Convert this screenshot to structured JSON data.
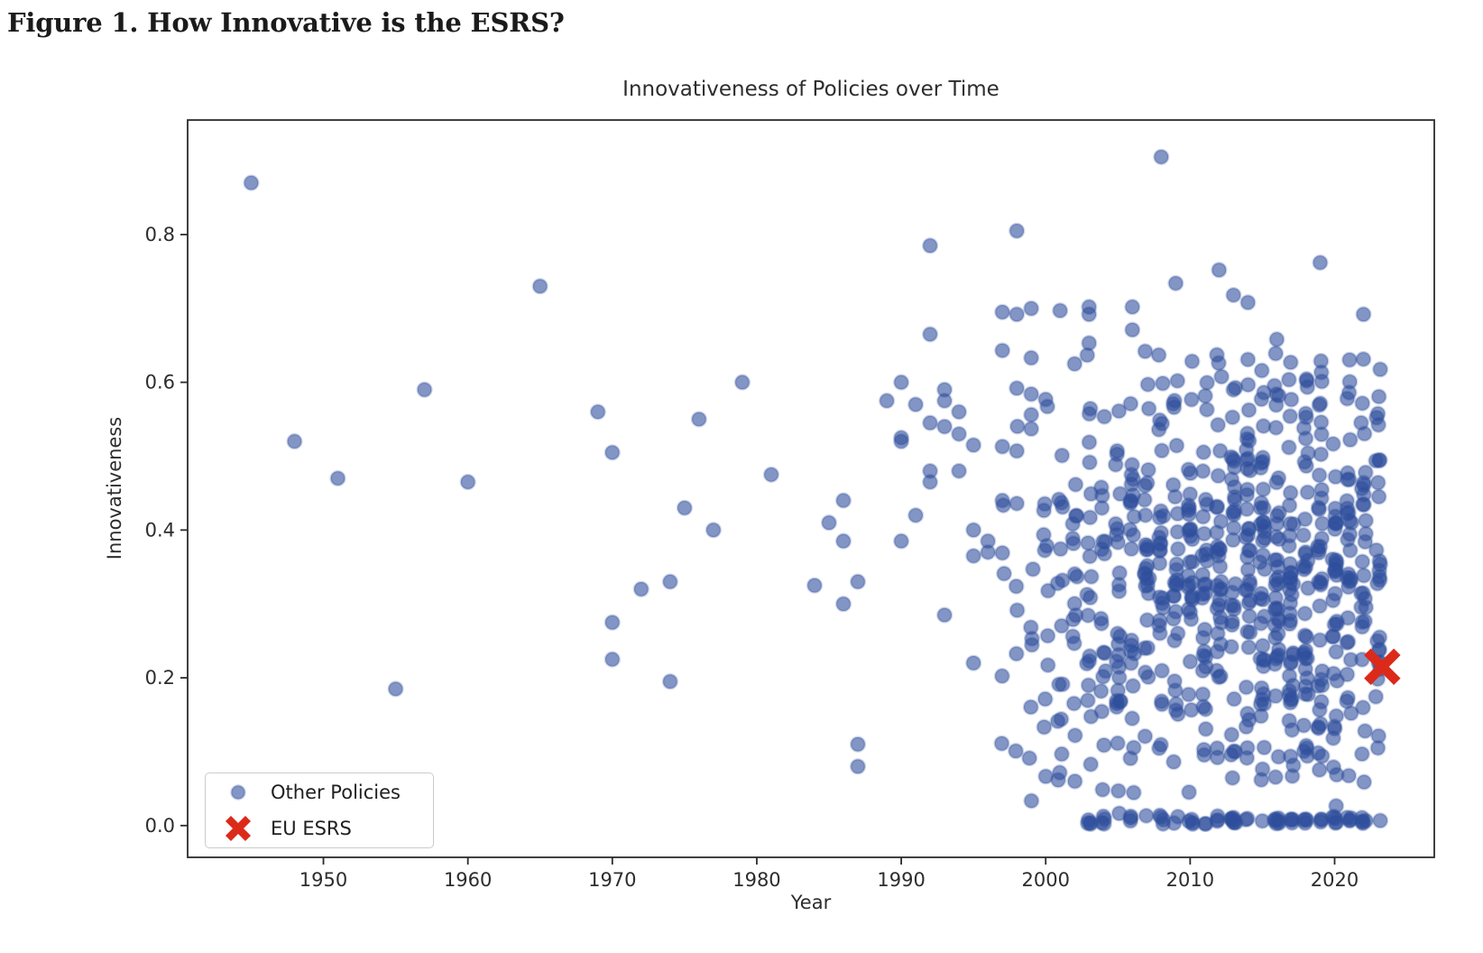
{
  "figure": {
    "caption": "Figure 1. How Innovative is the ESRS?"
  },
  "chart_data": {
    "type": "scatter",
    "title": "Innovativeness of Policies over Time",
    "xlabel": "Year",
    "ylabel": "Innovativeness",
    "xlim": [
      1940.6,
      2026.9
    ],
    "ylim": [
      -0.043,
      0.955
    ],
    "grid": false,
    "x_ticks": [
      [
        1950,
        "1950"
      ],
      [
        1960,
        "1960"
      ],
      [
        1970,
        "1970"
      ],
      [
        1980,
        "1980"
      ],
      [
        1990,
        "1990"
      ],
      [
        2000,
        "2000"
      ],
      [
        2010,
        "2010"
      ],
      [
        2020,
        "2020"
      ]
    ],
    "y_ticks": [
      [
        0.0,
        "0.0"
      ],
      [
        0.2,
        "0.2"
      ],
      [
        0.4,
        "0.4"
      ],
      [
        0.6,
        "0.6"
      ],
      [
        0.8,
        "0.8"
      ]
    ],
    "legend": {
      "position": "lower left"
    },
    "series": [
      {
        "name": "Other Policies",
        "marker": "circle",
        "color": "#2f4f9c",
        "alpha": 0.6,
        "points": [
          [
            1945,
            0.87
          ],
          [
            1948,
            0.52
          ],
          [
            1951,
            0.47
          ],
          [
            1955,
            0.185
          ],
          [
            1957,
            0.59
          ],
          [
            1960,
            0.465
          ],
          [
            1965,
            0.73
          ],
          [
            1969,
            0.56
          ],
          [
            1970,
            0.505
          ],
          [
            1970,
            0.275
          ],
          [
            1970,
            0.225
          ],
          [
            1972,
            0.32
          ],
          [
            1974,
            0.33
          ],
          [
            1974,
            0.195
          ],
          [
            1975,
            0.43
          ],
          [
            1976,
            0.55
          ],
          [
            1977,
            0.4
          ],
          [
            1979,
            0.6
          ],
          [
            1981,
            0.475
          ],
          [
            1984,
            0.325
          ],
          [
            1985,
            0.41
          ],
          [
            1986,
            0.44
          ],
          [
            1986,
            0.385
          ],
          [
            1986,
            0.3
          ],
          [
            1987,
            0.33
          ],
          [
            1987,
            0.11
          ],
          [
            1987,
            0.08
          ],
          [
            1989,
            0.575
          ],
          [
            1990,
            0.6
          ],
          [
            1990,
            0.525
          ],
          [
            1990,
            0.52
          ],
          [
            1990,
            0.385
          ],
          [
            1991,
            0.57
          ],
          [
            1991,
            0.42
          ],
          [
            1992,
            0.785
          ],
          [
            1992,
            0.665
          ],
          [
            1992,
            0.545
          ],
          [
            1992,
            0.48
          ],
          [
            1992,
            0.465
          ],
          [
            1993,
            0.59
          ],
          [
            1993,
            0.575
          ],
          [
            1993,
            0.54
          ],
          [
            1993,
            0.285
          ],
          [
            1994,
            0.56
          ],
          [
            1994,
            0.53
          ],
          [
            1994,
            0.48
          ],
          [
            1995,
            0.515
          ],
          [
            1995,
            0.4
          ],
          [
            1995,
            0.365
          ],
          [
            1995,
            0.22
          ],
          [
            1996,
            0.385
          ],
          [
            1996,
            0.37
          ],
          [
            1997,
            0.695
          ],
          [
            1997,
            0.643
          ],
          [
            1997,
            0.513
          ],
          [
            1997,
            0.44
          ],
          [
            1997,
            0.369
          ],
          [
            1998,
            0.805
          ],
          [
            1998,
            0.692
          ],
          [
            1998,
            0.592
          ],
          [
            1998,
            0.507
          ],
          [
            1998,
            0.436
          ],
          [
            1999,
            0.7
          ],
          [
            1999,
            0.633
          ],
          [
            1999,
            0.584
          ],
          [
            1999,
            0.556
          ],
          [
            1999,
            0.537
          ],
          [
            2001,
            0.697
          ],
          [
            2002,
            0.625
          ],
          [
            2003,
            0.702
          ],
          [
            2003,
            0.692
          ],
          [
            2003,
            0.653
          ],
          [
            2006,
            0.702
          ],
          [
            2006,
            0.671
          ],
          [
            2008,
            0.905
          ],
          [
            2009,
            0.734
          ],
          [
            2012,
            0.752
          ],
          [
            2013,
            0.718
          ],
          [
            2014,
            0.708
          ],
          [
            2016,
            0.658
          ],
          [
            2019,
            0.762
          ],
          [
            2022,
            0.692
          ],
          [
            2023,
            0.105
          ]
        ],
        "dense_cluster": {
          "note": "approx. 780 additional overlapping points, 1997-2023, individually unreadable",
          "seed": 11,
          "year_jitter": 0.17,
          "value_max": 0.655,
          "upper_band_fraction": 0.06,
          "upper_band_min": 0.5,
          "zero_row_from_year": 2003,
          "zero_row_fraction": 0.09,
          "year_counts": [
            [
              1997,
              4
            ],
            [
              1998,
              5
            ],
            [
              1999,
              7
            ],
            [
              2000,
              13
            ],
            [
              2001,
              15
            ],
            [
              2002,
              16
            ],
            [
              2003,
              24
            ],
            [
              2004,
              22
            ],
            [
              2005,
              28
            ],
            [
              2006,
              26
            ],
            [
              2007,
              28
            ],
            [
              2008,
              32
            ],
            [
              2009,
              30
            ],
            [
              2010,
              34
            ],
            [
              2011,
              34
            ],
            [
              2012,
              36
            ],
            [
              2013,
              38
            ],
            [
              2014,
              40
            ],
            [
              2015,
              42
            ],
            [
              2016,
              44
            ],
            [
              2017,
              44
            ],
            [
              2018,
              42
            ],
            [
              2019,
              40
            ],
            [
              2020,
              38
            ],
            [
              2021,
              36
            ],
            [
              2022,
              34
            ],
            [
              2023,
              28
            ]
          ]
        }
      },
      {
        "name": "EU ESRS",
        "marker": "X",
        "color": "#db2a1a",
        "points": [
          [
            2023.3,
            0.215
          ]
        ]
      }
    ]
  }
}
